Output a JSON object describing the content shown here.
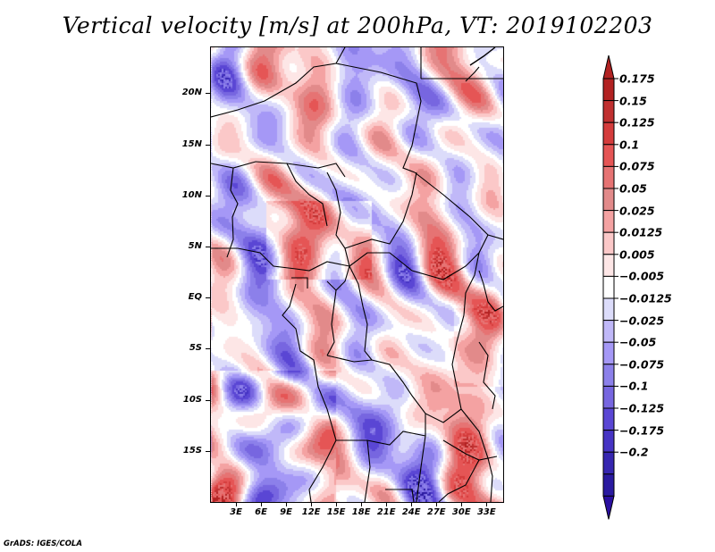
{
  "title": "Vertical velocity [m/s] at 200hPa, VT: 2019102203",
  "credit": "GrADS: IGES/COLA",
  "chart_data": {
    "type": "heatmap",
    "title": "Vertical velocity [m/s] at 200hPa, VT: 2019102203",
    "variable": "Vertical velocity",
    "units": "m/s",
    "level": "200hPa",
    "valid_time": "2019102203",
    "xlabel": "",
    "ylabel": "",
    "lon_range": [
      0,
      35
    ],
    "lat_range": [
      -20,
      24.5
    ],
    "x_tick_labels": [
      "3E",
      "6E",
      "9E",
      "12E",
      "15E",
      "18E",
      "21E",
      "24E",
      "27E",
      "30E",
      "33E"
    ],
    "x_tick_values": [
      3,
      6,
      9,
      12,
      15,
      18,
      21,
      24,
      27,
      30,
      33
    ],
    "y_tick_labels": [
      "20N",
      "15N",
      "10N",
      "5N",
      "EQ",
      "5S",
      "10S",
      "15S"
    ],
    "y_tick_values": [
      20,
      15,
      10,
      5,
      0,
      -5,
      -10,
      -15
    ],
    "colorbar": {
      "orientation": "vertical",
      "placement": "right",
      "extend": "both",
      "labels": [
        "0.175",
        "0.15",
        "0.125",
        "0.1",
        "0.075",
        "0.05",
        "0.025",
        "0.0125",
        "0.005",
        "-0.005",
        "-0.0125",
        "-0.025",
        "-0.05",
        "-0.075",
        "-0.1",
        "-0.125",
        "-0.175",
        "-0.2"
      ],
      "colors_top_to_bottom": [
        "#b22222",
        "#c03030",
        "#d43c3c",
        "#e55555",
        "#e67373",
        "#e28a8a",
        "#f4a2a2",
        "#fbc8c8",
        "#fde6e6",
        "#ffffff",
        "#dcdcfa",
        "#c0b8f8",
        "#a598f6",
        "#8c80ea",
        "#7766e0",
        "#5a46d4",
        "#4634c4",
        "#3626b0",
        "#2a1aa0"
      ],
      "over_color": "#b22222",
      "under_color": "#2a0fa0"
    }
  }
}
